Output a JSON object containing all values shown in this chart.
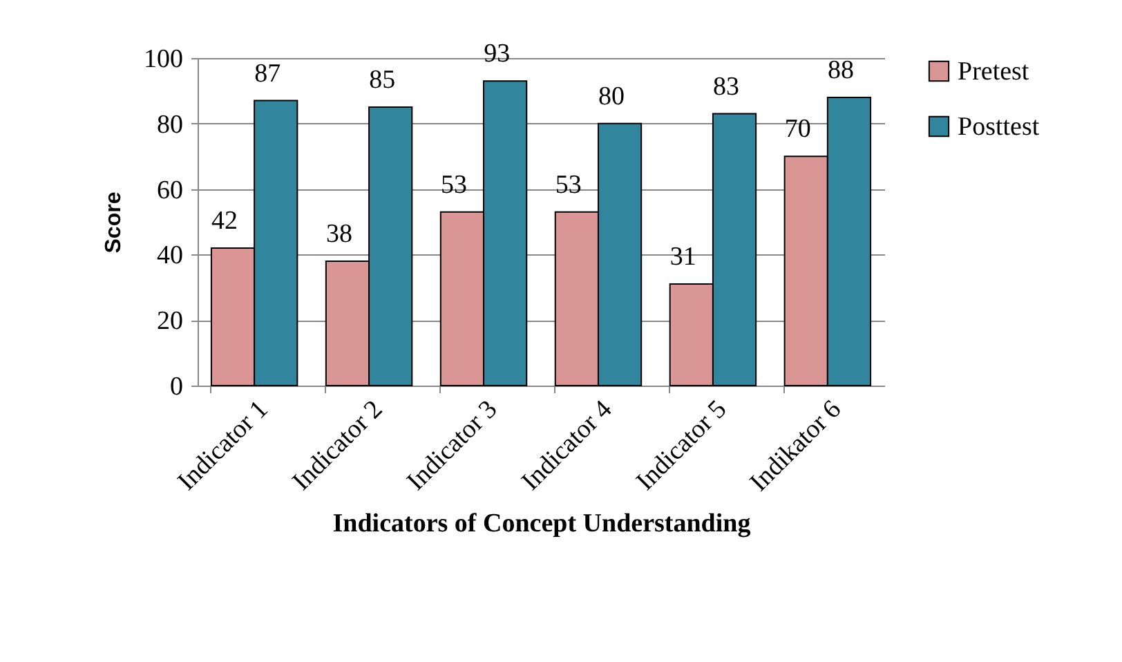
{
  "chart_data": {
    "type": "bar",
    "xlabel": "Indicators of Concept Understanding",
    "ylabel": "Score",
    "categories": [
      "Indicator 1",
      "Indicator 2",
      "Indicator 3",
      "Indicator 4",
      "Indicator 5",
      "Indikator 6"
    ],
    "series": [
      {
        "name": "Pretest",
        "color": "#d99694",
        "values": [
          42,
          38,
          53,
          53,
          31,
          70
        ]
      },
      {
        "name": "Posttest",
        "color": "#31859c",
        "values": [
          87,
          85,
          93,
          80,
          83,
          88
        ]
      }
    ],
    "ylim": [
      0,
      100
    ],
    "yticks": [
      0,
      20,
      40,
      60,
      80,
      100
    ],
    "grid": "y",
    "legend": "right",
    "data_labels": true
  }
}
